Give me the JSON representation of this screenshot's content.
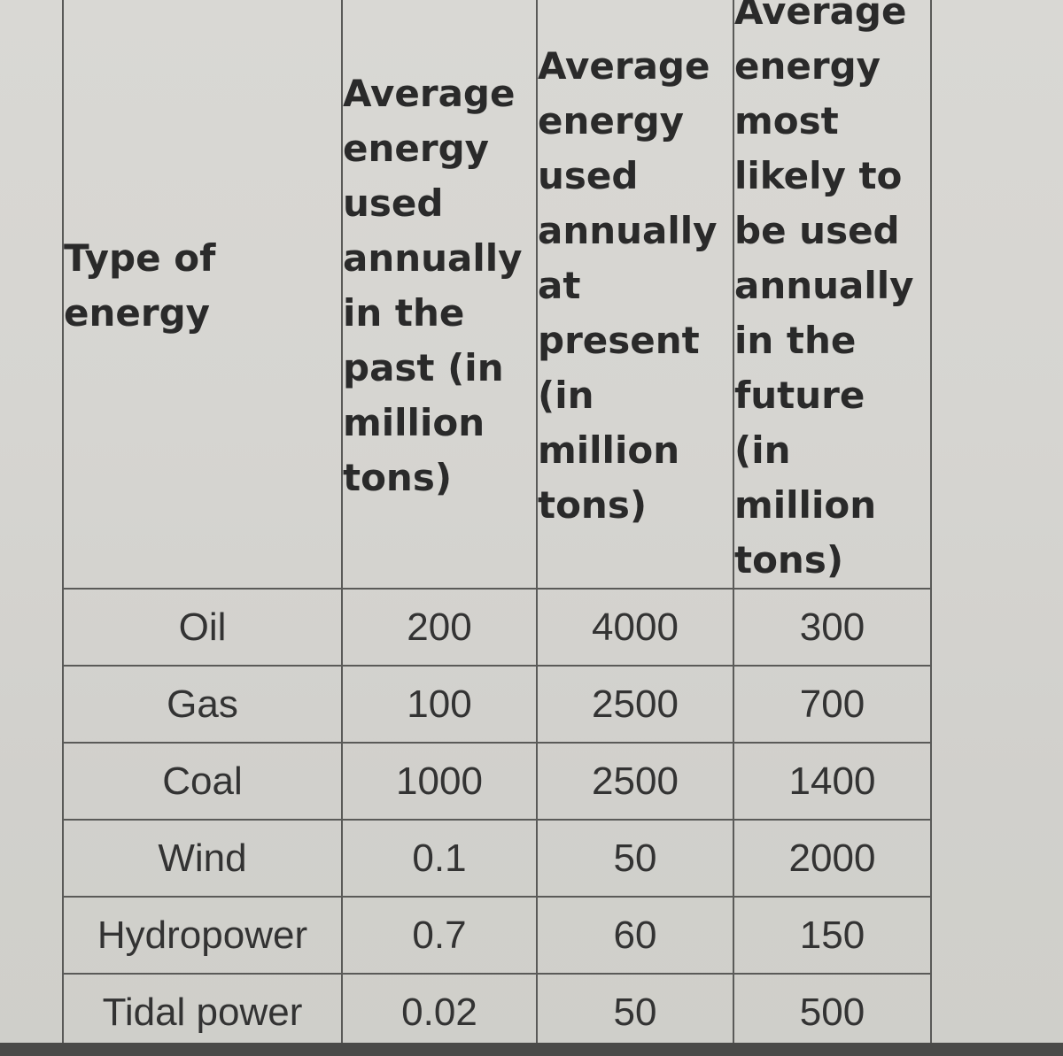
{
  "table": {
    "headers": [
      "Type of\nenergy",
      "Average\nenergy\nused\nannually\nin the\npast (in\nmillion\ntons)",
      "Average\nenergy\nused\nannually\nat\npresent\n(in\nmillion\ntons)",
      "Average\nenergy\nmost\nlikely to\nbe used\nannually\nin the\nfuture\n(in\nmillion\ntons)"
    ],
    "rows": [
      [
        "Oil",
        "200",
        "4000",
        "300"
      ],
      [
        "Gas",
        "100",
        "2500",
        "700"
      ],
      [
        "Coal",
        "1000",
        "2500",
        "1400"
      ],
      [
        "Wind",
        "0.1",
        "50",
        "2000"
      ],
      [
        "Hydropower",
        "0.7",
        "60",
        "150"
      ],
      [
        "Tidal power",
        "0.02",
        "50",
        "500"
      ]
    ]
  }
}
